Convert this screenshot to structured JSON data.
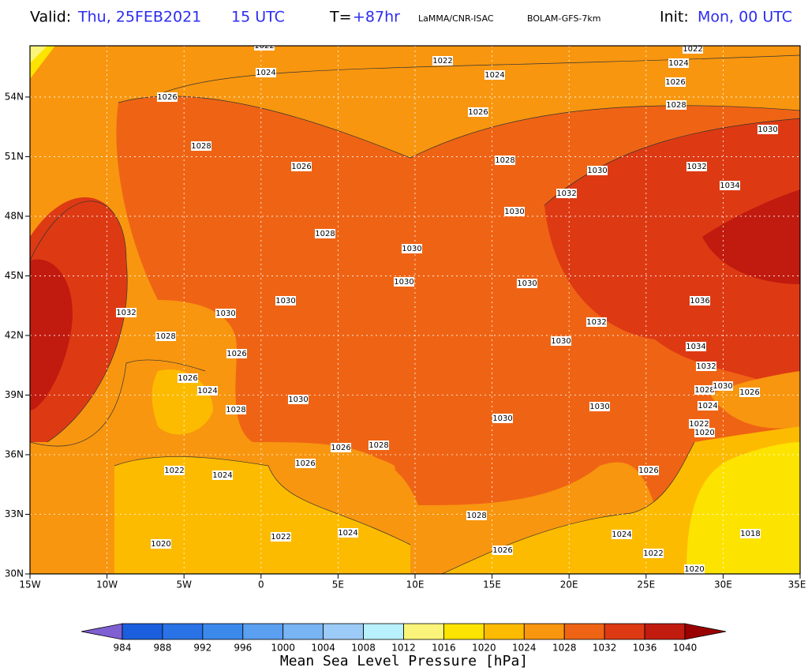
{
  "header": {
    "valid_label": "Valid:",
    "valid_date": "Thu, 25FEB2021",
    "valid_time": "15 UTC",
    "lead_label": "T=",
    "lead_value": "+87hr",
    "source": "LaMMA/CNR-ISAC",
    "model": "BOLAM-GFS-7km",
    "init_label": "Init:",
    "init_value": "Mon, 00 UTC"
  },
  "map": {
    "lat_ticks": [
      {
        "value": 30,
        "label": "30N"
      },
      {
        "value": 33,
        "label": "33N"
      },
      {
        "value": 36,
        "label": "36N"
      },
      {
        "value": 39,
        "label": "39N"
      },
      {
        "value": 42,
        "label": "42N"
      },
      {
        "value": 45,
        "label": "45N"
      },
      {
        "value": 48,
        "label": "48N"
      },
      {
        "value": 51,
        "label": "51N"
      },
      {
        "value": 54,
        "label": "54N"
      }
    ],
    "lon_ticks": [
      {
        "value": -15,
        "label": "15W"
      },
      {
        "value": -10,
        "label": "10W"
      },
      {
        "value": -5,
        "label": "5W"
      },
      0,
      {
        "value": 5,
        "label": "5E"
      },
      {
        "value": 10,
        "label": "10E"
      },
      {
        "value": 15,
        "label": "15E"
      },
      {
        "value": 20,
        "label": "20E"
      },
      {
        "value": 25,
        "label": "25E"
      },
      {
        "value": 30,
        "label": "30E"
      },
      {
        "value": 35,
        "label": "35E"
      }
    ],
    "contour_labels": [
      1022,
      1024,
      1026,
      1028,
      1026,
      1028,
      1030,
      1030,
      1030,
      1030,
      1032,
      1028,
      1026,
      1026,
      1024,
      1028,
      1030,
      1026,
      1028,
      1026,
      1022,
      1024,
      1020,
      1022,
      1024,
      1028,
      1026,
      1030,
      1030,
      1030,
      1032,
      1028,
      1026,
      1024,
      1022,
      1030,
      1032,
      1030,
      1030,
      1026,
      1024,
      1022,
      1020,
      1022,
      1024,
      1026,
      1028,
      1030,
      1032,
      1034,
      1036,
      1034,
      1032,
      1028,
      1030,
      1026,
      1024,
      1022,
      1020,
      1018
    ]
  },
  "colorbar": {
    "levels": [
      984,
      988,
      992,
      996,
      1000,
      1004,
      1008,
      1012,
      1016,
      1020,
      1024,
      1028,
      1032,
      1036,
      1040
    ],
    "colors": [
      "#7f5fd2",
      "#1b5fde",
      "#2a73e6",
      "#3c89ec",
      "#5a9ff0",
      "#79b4f4",
      "#9ccbf7",
      "#b8f1fb",
      "#fbf47a",
      "#fde300",
      "#fdbb00",
      "#f8960f",
      "#ef6414",
      "#dd3a14",
      "#c11b10",
      "#990000"
    ],
    "title": "Mean Sea Level Pressure [hPa]"
  }
}
